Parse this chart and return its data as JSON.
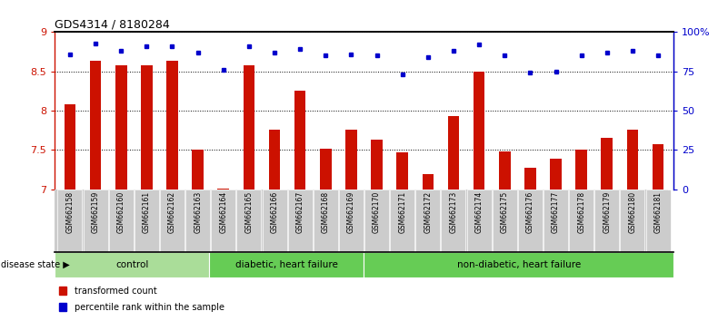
{
  "title": "GDS4314 / 8180284",
  "samples": [
    "GSM662158",
    "GSM662159",
    "GSM662160",
    "GSM662161",
    "GSM662162",
    "GSM662163",
    "GSM662164",
    "GSM662165",
    "GSM662166",
    "GSM662167",
    "GSM662168",
    "GSM662169",
    "GSM662170",
    "GSM662171",
    "GSM662172",
    "GSM662173",
    "GSM662174",
    "GSM662175",
    "GSM662176",
    "GSM662177",
    "GSM662178",
    "GSM662179",
    "GSM662180",
    "GSM662181"
  ],
  "bar_values": [
    8.08,
    8.63,
    8.58,
    8.58,
    8.63,
    7.5,
    7.01,
    8.58,
    7.76,
    8.25,
    7.52,
    7.76,
    7.63,
    7.47,
    7.2,
    7.93,
    8.5,
    7.48,
    7.28,
    7.39,
    7.5,
    7.65,
    7.76,
    7.57
  ],
  "dot_values": [
    86,
    93,
    88,
    91,
    91,
    87,
    76,
    91,
    87,
    89,
    85,
    86,
    85,
    73,
    84,
    88,
    92,
    85,
    74,
    75,
    85,
    87,
    88,
    85
  ],
  "bar_color": "#cc1100",
  "dot_color": "#0000cc",
  "ylim_left": [
    7.0,
    9.0
  ],
  "ylim_right": [
    0,
    100
  ],
  "yticks_left": [
    7.0,
    7.5,
    8.0,
    8.5,
    9.0
  ],
  "yticks_right": [
    0,
    25,
    50,
    75,
    100
  ],
  "ytick_labels_right": [
    "0",
    "25",
    "50",
    "75",
    "100%"
  ],
  "groups": [
    {
      "label": "control",
      "start": 0,
      "end": 6,
      "color": "#aadd99"
    },
    {
      "label": "diabetic, heart failure",
      "start": 6,
      "end": 12,
      "color": "#66cc55"
    },
    {
      "label": "non-diabetic, heart failure",
      "start": 12,
      "end": 24,
      "color": "#66cc55"
    }
  ],
  "legend_bar_label": "transformed count",
  "legend_dot_label": "percentile rank within the sample",
  "disease_state_label": "disease state",
  "label_area_color": "#cccccc",
  "bar_width": 0.45
}
